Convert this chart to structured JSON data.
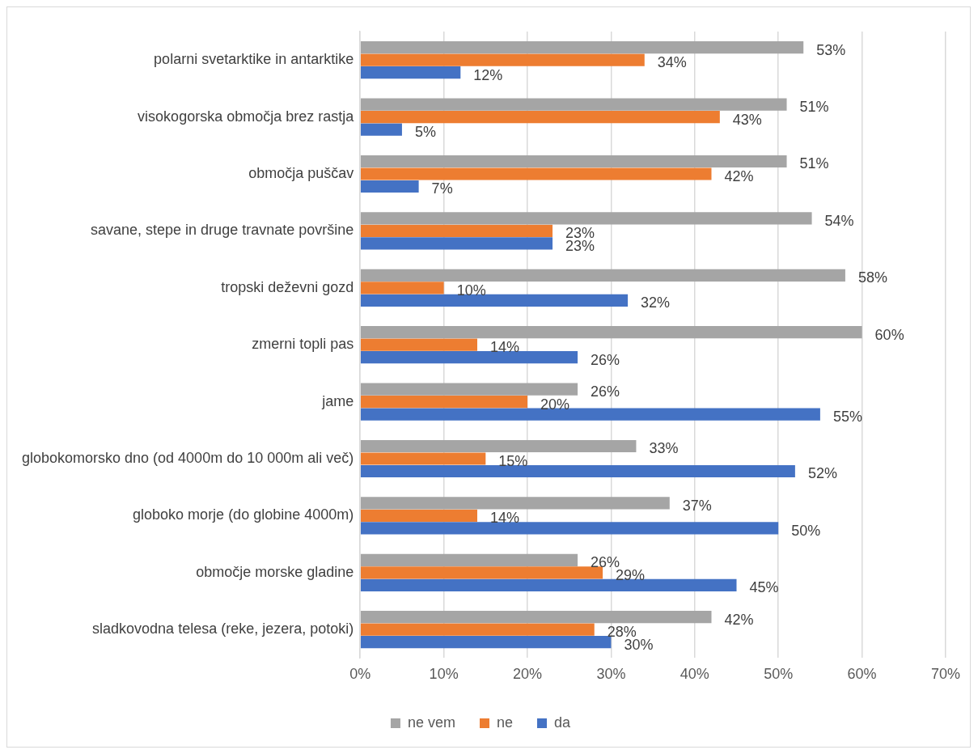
{
  "chart_data": {
    "type": "bar",
    "orientation": "horizontal",
    "categories": [
      "polarni svetarktike in antarktike",
      "visokogorska območja brez rastja",
      "območja puščav",
      "savane, stepe in druge travnate površine",
      "tropski deževni gozd",
      "zmerni topli pas",
      "jame",
      "globokomorsko dno (od 4000m do 10 000m ali več)",
      "globoko morje (do globine 4000m)",
      "območje morske gladine",
      "sladkovodna telesa (reke, jezera, potoki)"
    ],
    "series": [
      {
        "name": "ne vem",
        "color": "#a5a5a5",
        "values": [
          53,
          51,
          51,
          54,
          58,
          60,
          26,
          33,
          37,
          26,
          42
        ],
        "value_labels": [
          "53%",
          "51%",
          "51%",
          "54%",
          "58%",
          "60%",
          "26%",
          "33%",
          "37%",
          "26%",
          "42%"
        ]
      },
      {
        "name": "ne",
        "color": "#ed7d31",
        "values": [
          34,
          43,
          42,
          23,
          10,
          14,
          20,
          15,
          14,
          29,
          28
        ],
        "value_labels": [
          "34%",
          "43%",
          "42%",
          "23%",
          "10%",
          "14%",
          "20%",
          "15%",
          "14%",
          "29%",
          "28%"
        ]
      },
      {
        "name": "da",
        "color": "#4472c4",
        "values": [
          12,
          5,
          7,
          23,
          32,
          26,
          55,
          52,
          50,
          45,
          30
        ],
        "value_labels": [
          "12%",
          "5%",
          "7%",
          "23%",
          "32%",
          "26%",
          "55%",
          "52%",
          "50%",
          "45%",
          "30%"
        ]
      }
    ],
    "xlim": [
      0,
      70
    ],
    "xticks": [
      {
        "value": 0,
        "label": "0%"
      },
      {
        "value": 10,
        "label": "10%"
      },
      {
        "value": 20,
        "label": "20%"
      },
      {
        "value": 30,
        "label": "30%"
      },
      {
        "value": 40,
        "label": "40%"
      },
      {
        "value": 50,
        "label": "50%"
      },
      {
        "value": 60,
        "label": "60%"
      },
      {
        "value": 70,
        "label": "70%"
      }
    ],
    "grid": "x",
    "legend": "bottom"
  }
}
